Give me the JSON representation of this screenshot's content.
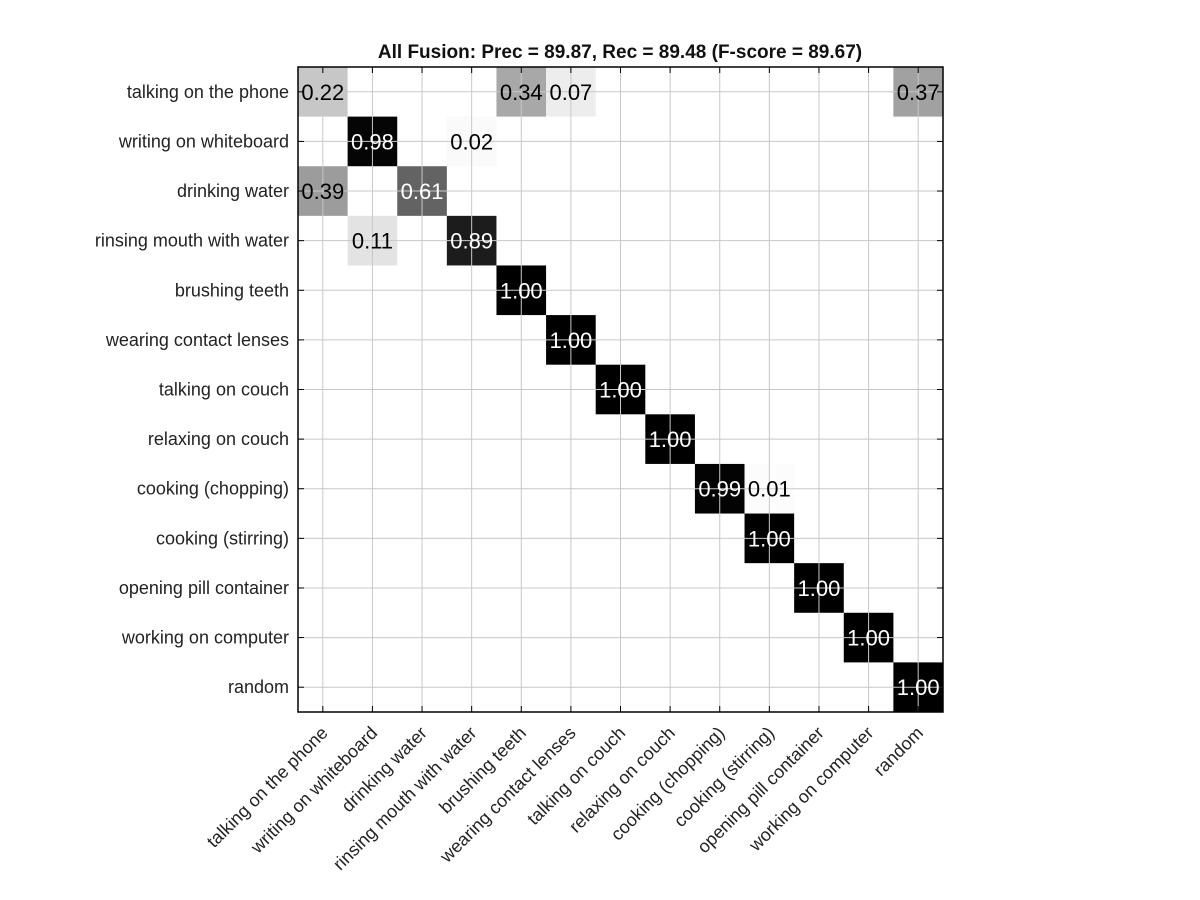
{
  "chart_data": {
    "type": "heatmap",
    "title": "All Fusion: Prec = 89.87, Rec = 89.48 (F-score = 89.67)",
    "row_labels": [
      "talking on the phone",
      "writing on whiteboard",
      "drinking water",
      "rinsing mouth with water",
      "brushing teeth",
      "wearing contact lenses",
      "talking on couch",
      "relaxing on couch",
      "cooking (chopping)",
      "cooking (stirring)",
      "opening pill container",
      "working on computer",
      "random"
    ],
    "col_labels": [
      "talking on the phone",
      "writing on whiteboard",
      "drinking water",
      "rinsing mouth with water",
      "brushing teeth",
      "wearing contact lenses",
      "talking on couch",
      "relaxing on couch",
      "cooking (chopping)",
      "cooking (stirring)",
      "opening pill container",
      "working on computer",
      "random"
    ],
    "cells": [
      {
        "row": 0,
        "col": 0,
        "value": 0.22,
        "label": "0.22"
      },
      {
        "row": 0,
        "col": 4,
        "value": 0.34,
        "label": "0.34"
      },
      {
        "row": 0,
        "col": 5,
        "value": 0.07,
        "label": "0.07"
      },
      {
        "row": 0,
        "col": 12,
        "value": 0.37,
        "label": "0.37"
      },
      {
        "row": 1,
        "col": 1,
        "value": 0.98,
        "label": "0.98"
      },
      {
        "row": 1,
        "col": 3,
        "value": 0.02,
        "label": "0.02"
      },
      {
        "row": 2,
        "col": 0,
        "value": 0.39,
        "label": "0.39"
      },
      {
        "row": 2,
        "col": 2,
        "value": 0.61,
        "label": "0.61"
      },
      {
        "row": 3,
        "col": 1,
        "value": 0.11,
        "label": "0.11"
      },
      {
        "row": 3,
        "col": 3,
        "value": 0.89,
        "label": "0.89"
      },
      {
        "row": 4,
        "col": 4,
        "value": 1.0,
        "label": "1.00"
      },
      {
        "row": 5,
        "col": 5,
        "value": 1.0,
        "label": "1.00"
      },
      {
        "row": 6,
        "col": 6,
        "value": 1.0,
        "label": "1.00"
      },
      {
        "row": 7,
        "col": 7,
        "value": 1.0,
        "label": "1.00"
      },
      {
        "row": 8,
        "col": 8,
        "value": 0.99,
        "label": "0.99"
      },
      {
        "row": 8,
        "col": 9,
        "value": 0.01,
        "label": "0.01"
      },
      {
        "row": 9,
        "col": 9,
        "value": 1.0,
        "label": "1.00"
      },
      {
        "row": 10,
        "col": 10,
        "value": 1.0,
        "label": "1.00"
      },
      {
        "row": 11,
        "col": 11,
        "value": 1.0,
        "label": "1.00"
      },
      {
        "row": 12,
        "col": 12,
        "value": 1.0,
        "label": "1.00"
      }
    ],
    "value_range": [
      0,
      1
    ],
    "colormap": "gray (white = 0, black = 1)",
    "grid": true
  }
}
